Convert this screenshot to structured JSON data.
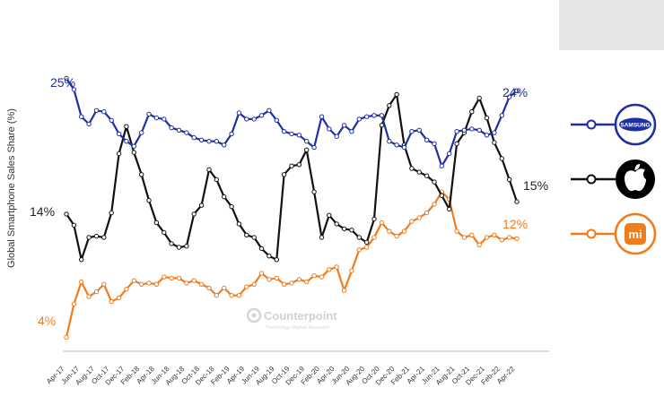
{
  "chart_data": {
    "type": "line",
    "ylabel": "Global Smartphone Sales Share (%)",
    "xlabel": "",
    "title": "",
    "grid": false,
    "legend_placement": "right",
    "ylim": [
      2,
      27
    ],
    "x": [
      "Apr-17",
      "May-17",
      "Jun-17",
      "Jul-17",
      "Aug-17",
      "Sep-17",
      "Oct-17",
      "Nov-17",
      "Dec-17",
      "Jan-18",
      "Feb-18",
      "Mar-18",
      "Apr-18",
      "May-18",
      "Jun-18",
      "Jul-18",
      "Aug-18",
      "Sep-18",
      "Oct-18",
      "Nov-18",
      "Dec-18",
      "Jan-19",
      "Feb-19",
      "Mar-19",
      "Apr-19",
      "May-19",
      "Jun-19",
      "Jul-19",
      "Aug-19",
      "Sep-19",
      "Oct-19",
      "Nov-19",
      "Dec-19",
      "Jan-20",
      "Feb-20",
      "Mar-20",
      "Apr-20",
      "May-20",
      "Jun-20",
      "Jul-20",
      "Aug-20",
      "Sep-20",
      "Oct-20",
      "Nov-20",
      "Dec-20",
      "Jan-21",
      "Feb-21",
      "Mar-21",
      "Apr-21",
      "May-21",
      "Jun-21",
      "Jul-21",
      "Aug-21",
      "Sep-21",
      "Oct-21",
      "Nov-21",
      "Dec-21",
      "Jan-22",
      "Feb-22",
      "Mar-22",
      "Apr-22"
    ],
    "tick_labels": [
      "Apr-17",
      "Jun-17",
      "Aug-17",
      "Oct-17",
      "Dec-17",
      "Feb-18",
      "Apr-18",
      "Jun-18",
      "Aug-18",
      "Oct-18",
      "Dec-18",
      "Feb-19",
      "Apr-19",
      "Jun-19",
      "Aug-19",
      "Oct-19",
      "Dec-19",
      "Feb-20",
      "Apr-20",
      "Jun-20",
      "Aug-20",
      "Oct-20",
      "Dec-20",
      "Feb-21",
      "Apr-21",
      "Jun-21",
      "Aug-21",
      "Oct-21",
      "Dec-21",
      "Feb-22",
      "Apr-22"
    ],
    "series": [
      {
        "name": "Samsung",
        "color": "#1f2fa0",
        "start_label": "25%",
        "end_label": "24%",
        "values": [
          25.0,
          24.1,
          21.9,
          21.3,
          22.4,
          22.3,
          21.6,
          20.5,
          19.9,
          19.5,
          20.6,
          22.1,
          21.8,
          21.7,
          21.0,
          20.8,
          20.6,
          20.2,
          20.0,
          19.9,
          19.9,
          19.6,
          20.5,
          22.2,
          21.7,
          21.7,
          22.0,
          22.4,
          21.6,
          20.7,
          20.5,
          20.4,
          19.9,
          19.4,
          21.9,
          20.9,
          20.3,
          21.2,
          20.7,
          21.7,
          21.9,
          22.0,
          22.0,
          19.9,
          19.6,
          19.4,
          20.7,
          20.8,
          20.0,
          19.7,
          17.9,
          18.9,
          20.7,
          20.8,
          20.9,
          20.8,
          20.4,
          20.6,
          22.0,
          23.5,
          24.0
        ]
      },
      {
        "name": "Apple",
        "color": "#111111",
        "start_label": "14%",
        "end_label": "15%",
        "values": [
          14.0,
          13.1,
          10.3,
          12.1,
          12.2,
          12.1,
          14.1,
          18.9,
          21.1,
          19.0,
          17.2,
          15.1,
          13.3,
          12.5,
          11.6,
          11.3,
          11.4,
          14.0,
          14.7,
          17.6,
          16.8,
          15.4,
          14.6,
          13.2,
          12.3,
          12.1,
          11.2,
          10.6,
          10.3,
          17.2,
          17.9,
          18.0,
          19.2,
          15.8,
          12.1,
          13.9,
          13.2,
          12.8,
          12.7,
          12.1,
          11.7,
          13.6,
          21.2,
          22.8,
          23.7,
          19.6,
          17.7,
          17.4,
          17.1,
          16.6,
          15.5,
          14.4,
          19.7,
          20.6,
          22.3,
          23.4,
          21.8,
          19.8,
          18.5,
          16.8,
          15.0
        ]
      },
      {
        "name": "Xiaomi",
        "color": "#f07c1d",
        "start_label": "4%",
        "end_label": "12%",
        "values": [
          4.0,
          6.7,
          8.5,
          7.3,
          7.7,
          8.3,
          6.9,
          7.2,
          7.9,
          8.6,
          8.3,
          8.4,
          8.3,
          8.9,
          8.8,
          8.8,
          8.4,
          8.6,
          8.3,
          8.0,
          7.4,
          8.0,
          7.4,
          7.4,
          8.1,
          8.3,
          9.2,
          8.7,
          8.8,
          8.3,
          8.4,
          8.7,
          8.5,
          9.0,
          8.9,
          9.5,
          9.7,
          7.8,
          9.4,
          11.1,
          11.3,
          12.1,
          13.3,
          12.6,
          12.2,
          12.6,
          13.4,
          13.7,
          14.1,
          14.8,
          15.8,
          15.2,
          12.6,
          12.1,
          12.3,
          11.5,
          12.1,
          12.3,
          11.9,
          12.1,
          12.0
        ]
      }
    ]
  },
  "legend": [
    {
      "name": "samsung",
      "logo_text": "SAMSUNG",
      "color": "#1f2fa0",
      "icon": "samsung-logo"
    },
    {
      "name": "apple",
      "color": "#111111",
      "icon": "apple-logo"
    },
    {
      "name": "xiaomi",
      "logo_text": "mi",
      "color": "#f07c1d",
      "icon": "xiaomi-logo"
    }
  ],
  "watermark": {
    "brand": "Counterpoint",
    "tagline": "Technology Market Research"
  }
}
